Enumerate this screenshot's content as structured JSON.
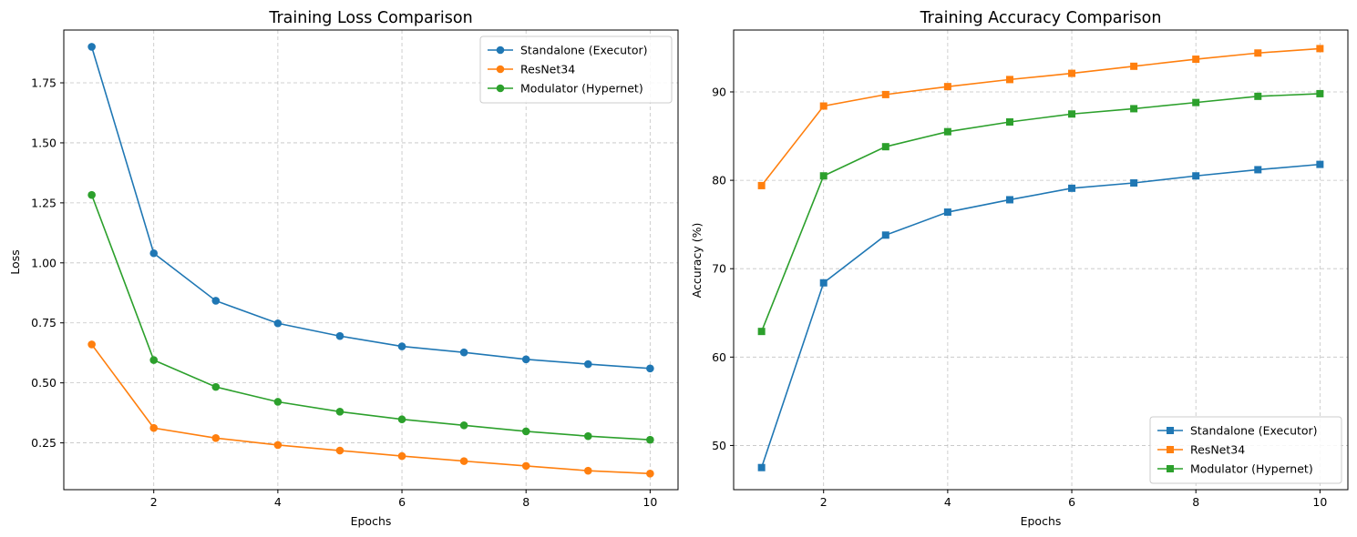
{
  "chart_data": [
    {
      "type": "line",
      "title": "Training Loss Comparison",
      "xlabel": "Epochs",
      "ylabel": "Loss",
      "xlim": [
        0.55,
        10.45
      ],
      "ylim": [
        0.055,
        1.97
      ],
      "xticks": [
        2,
        4,
        6,
        8,
        10
      ],
      "yticks": [
        0.25,
        0.5,
        0.75,
        1.0,
        1.25,
        1.5,
        1.75
      ],
      "ytick_labels": [
        "0.25",
        "0.50",
        "0.75",
        "1.00",
        "1.25",
        "1.50",
        "1.75"
      ],
      "marker": "circle",
      "grid": true,
      "legend_position": "top-right",
      "x": [
        1,
        2,
        3,
        4,
        5,
        6,
        7,
        8,
        9,
        10
      ],
      "series": [
        {
          "name": "Standalone (Executor)",
          "color": "#1f77b4",
          "values": [
            1.9,
            1.04,
            0.842,
            0.748,
            0.695,
            0.652,
            0.627,
            0.598,
            0.578,
            0.56
          ]
        },
        {
          "name": "ResNet34",
          "color": "#ff7f0e",
          "values": [
            0.66,
            0.312,
            0.27,
            0.241,
            0.218,
            0.195,
            0.174,
            0.154,
            0.134,
            0.122
          ]
        },
        {
          "name": "Modulator (Hypernet)",
          "color": "#2ca02c",
          "values": [
            1.283,
            0.595,
            0.483,
            0.421,
            0.38,
            0.348,
            0.323,
            0.298,
            0.278,
            0.263
          ]
        }
      ]
    },
    {
      "type": "line",
      "title": "Training Accuracy Comparison",
      "xlabel": "Epochs",
      "ylabel": "Accuracy (%)",
      "xlim": [
        0.55,
        10.45
      ],
      "ylim": [
        45.0,
        97.0
      ],
      "xticks": [
        2,
        4,
        6,
        8,
        10
      ],
      "yticks": [
        50,
        60,
        70,
        80,
        90
      ],
      "ytick_labels": [
        "50",
        "60",
        "70",
        "80",
        "90"
      ],
      "marker": "square",
      "grid": true,
      "legend_position": "bottom-right",
      "x": [
        1,
        2,
        3,
        4,
        5,
        6,
        7,
        8,
        9,
        10
      ],
      "series": [
        {
          "name": "Standalone (Executor)",
          "color": "#1f77b4",
          "values": [
            47.5,
            68.4,
            73.8,
            76.4,
            77.8,
            79.1,
            79.7,
            80.5,
            81.2,
            81.8
          ]
        },
        {
          "name": "ResNet34",
          "color": "#ff7f0e",
          "values": [
            79.4,
            88.4,
            89.7,
            90.6,
            91.4,
            92.1,
            92.9,
            93.7,
            94.4,
            94.9
          ]
        },
        {
          "name": "Modulator (Hypernet)",
          "color": "#2ca02c",
          "values": [
            62.9,
            80.5,
            83.8,
            85.5,
            86.6,
            87.5,
            88.1,
            88.8,
            89.5,
            89.8
          ]
        }
      ]
    }
  ]
}
